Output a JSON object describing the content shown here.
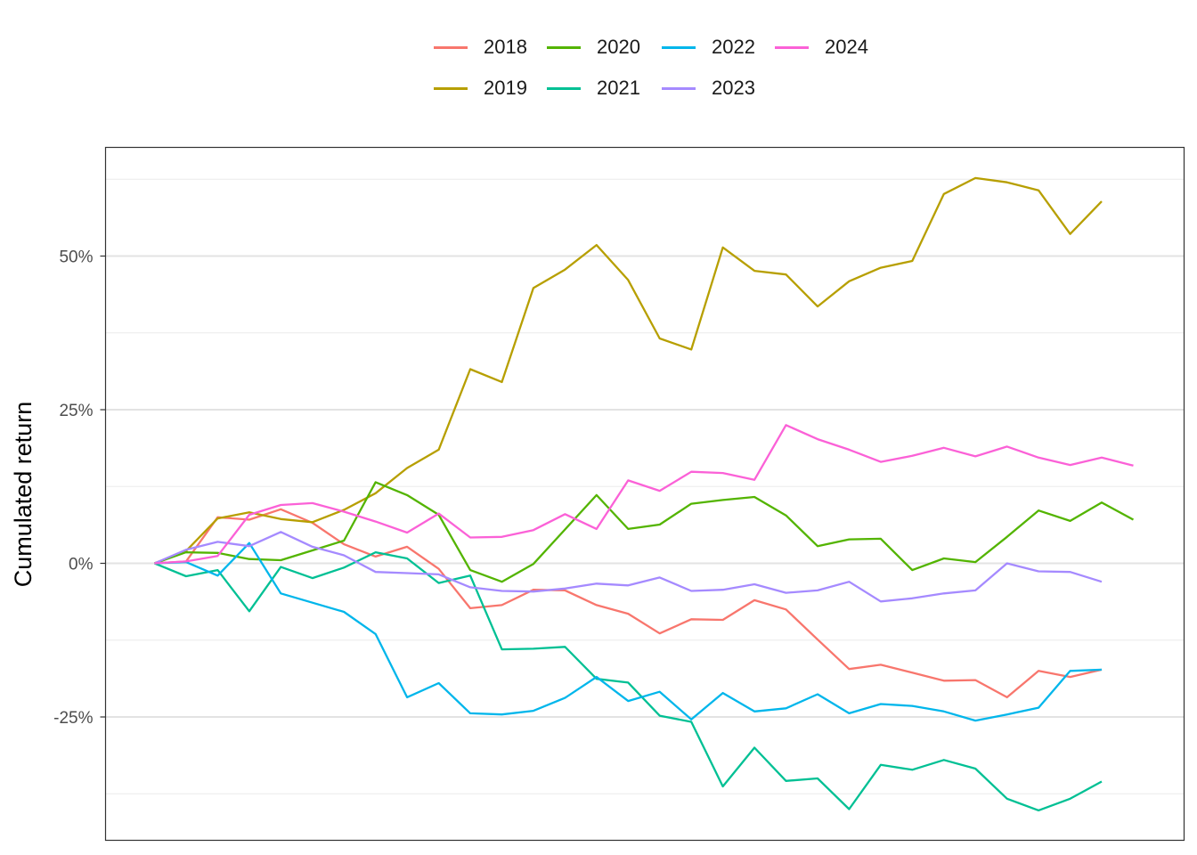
{
  "chart_data": {
    "type": "line",
    "title": "",
    "xlabel": "",
    "ylabel": "Cumulated return",
    "ylim": [
      -45,
      68
    ],
    "y_ticks": [
      {
        "value": 50,
        "label": "50%"
      },
      {
        "value": 25,
        "label": "25%"
      },
      {
        "value": 0,
        "label": "0%"
      },
      {
        "value": -25,
        "label": "-25%"
      }
    ],
    "y_minor_grid": [
      62.5,
      37.5,
      12.5,
      -12.5,
      -37.5
    ],
    "grid": true,
    "legend_position": "top",
    "x": [
      0,
      1,
      2,
      3,
      4,
      5,
      6,
      7,
      8,
      9,
      10,
      11,
      12,
      13,
      14,
      15,
      16,
      17,
      18,
      19,
      20,
      21,
      22,
      23,
      24,
      25,
      26,
      27,
      28,
      29,
      30,
      31
    ],
    "series": [
      {
        "name": "2018",
        "color": "#F8766D",
        "values": [
          0,
          0.3,
          7.5,
          7.1,
          8.8,
          6.6,
          3.1,
          1.1,
          2.7,
          -0.9,
          -7.3,
          -6.8,
          -4.3,
          -4.4,
          -6.8,
          -8.2,
          -11.4,
          -9.1,
          -9.2,
          -6.0,
          -7.5,
          -12.4,
          -17.2,
          -16.5,
          -17.8,
          -19.1,
          -19.0,
          -21.8,
          -17.5,
          -18.5,
          -17.3,
          null
        ]
      },
      {
        "name": "2019",
        "color": "#B79F00",
        "values": [
          0,
          2.0,
          7.3,
          8.3,
          7.2,
          6.7,
          8.7,
          11.4,
          15.5,
          18.5,
          31.6,
          29.5,
          44.8,
          47.8,
          51.8,
          46.1,
          36.6,
          34.8,
          51.4,
          47.6,
          47.0,
          41.8,
          45.9,
          48.1,
          49.2,
          60.1,
          62.7,
          62.0,
          60.7,
          53.6,
          58.9,
          null
        ]
      },
      {
        "name": "2020",
        "color": "#53B400",
        "values": [
          0,
          1.8,
          1.7,
          0.7,
          0.5,
          2.1,
          3.7,
          13.2,
          11.1,
          7.9,
          -1.1,
          -3.0,
          -0.1,
          5.5,
          11.1,
          5.6,
          6.3,
          9.7,
          10.3,
          10.8,
          7.8,
          2.8,
          3.9,
          4.0,
          -1.1,
          0.8,
          0.2,
          4.3,
          8.6,
          6.9,
          9.9,
          7.1
        ]
      },
      {
        "name": "2021",
        "color": "#00C094",
        "values": [
          0,
          -2.1,
          -1.1,
          -7.8,
          -0.6,
          -2.4,
          -0.7,
          1.8,
          0.8,
          -3.2,
          -2.0,
          -14.0,
          -13.9,
          -13.6,
          -18.8,
          -19.4,
          -24.8,
          -25.8,
          -36.3,
          -30.0,
          -35.4,
          -35.0,
          -40.0,
          -32.8,
          -33.6,
          -32.0,
          -33.4,
          -38.3,
          -40.2,
          -38.3,
          -35.5,
          null
        ]
      },
      {
        "name": "2022",
        "color": "#00B6EB",
        "values": [
          0,
          0.2,
          -2.0,
          3.3,
          -4.9,
          -6.4,
          -7.9,
          -11.5,
          -21.8,
          -19.5,
          -24.4,
          -24.6,
          -24.0,
          -21.9,
          -18.5,
          -22.4,
          -20.9,
          -25.4,
          -21.1,
          -24.1,
          -23.6,
          -21.3,
          -24.4,
          -22.9,
          -23.2,
          -24.1,
          -25.6,
          -24.6,
          -23.5,
          -17.5,
          -17.3,
          null
        ]
      },
      {
        "name": "2023",
        "color": "#A58AFF",
        "values": [
          0,
          2.2,
          3.5,
          2.8,
          5.1,
          2.7,
          1.3,
          -1.4,
          -1.6,
          -1.8,
          -3.9,
          -4.5,
          -4.6,
          -4.1,
          -3.3,
          -3.6,
          -2.3,
          -4.5,
          -4.3,
          -3.4,
          -4.8,
          -4.4,
          -3.0,
          -6.2,
          -5.7,
          -4.9,
          -4.4,
          0.0,
          -1.3,
          -1.4,
          -3.0,
          null
        ]
      },
      {
        "name": "2024",
        "color": "#FB61D7",
        "values": [
          0,
          0.3,
          1.2,
          7.9,
          9.5,
          9.8,
          8.4,
          6.8,
          5.0,
          8.1,
          4.2,
          4.3,
          5.4,
          8.0,
          5.6,
          13.5,
          11.8,
          14.9,
          14.7,
          13.6,
          22.5,
          20.2,
          18.5,
          16.5,
          17.5,
          18.8,
          17.4,
          19.0,
          17.2,
          16.0,
          17.2,
          15.9
        ]
      }
    ],
    "legend_rows": [
      [
        "2018",
        "2020",
        "2022",
        "2024"
      ],
      [
        "2019",
        "2021",
        "2023"
      ]
    ]
  }
}
